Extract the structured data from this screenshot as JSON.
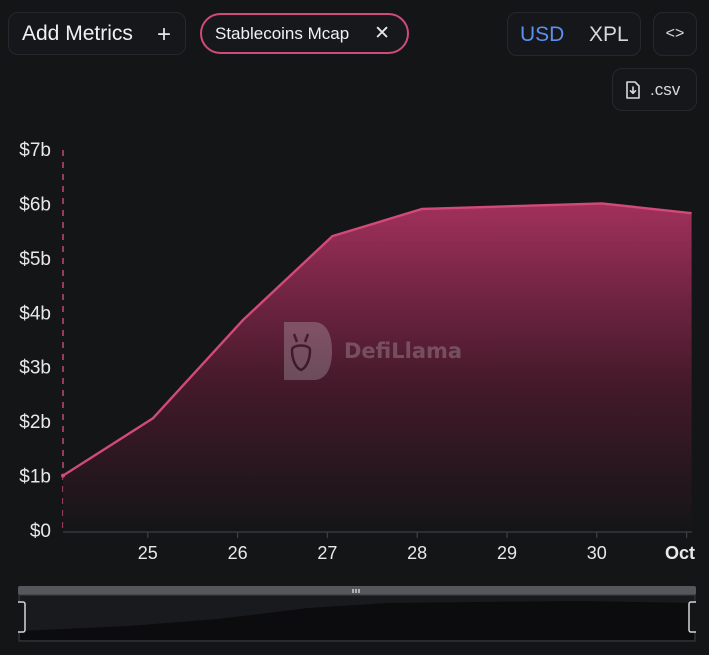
{
  "toolbar": {
    "add_metrics_label": "Add Metrics",
    "add_icon": "plus-icon",
    "metric_chip_label": "Stablecoins Mcap",
    "remove_icon": "close-icon",
    "currency_options": [
      "USD",
      "XPL"
    ],
    "selected_currency": "USD",
    "embed_icon": "code-icon",
    "csv_label": ".csv",
    "csv_icon": "file-download-icon"
  },
  "watermark": {
    "text": "DefiLlama",
    "icon": "llama-logo-icon"
  },
  "colors": {
    "background": "#141517",
    "series": "#d14a78",
    "accent_selected": "#5b8ff0",
    "axis_text": "#e8e8ea"
  },
  "chart_data": {
    "type": "area",
    "title": "",
    "xlabel": "",
    "ylabel": "",
    "x_tick_labels": [
      "25",
      "26",
      "27",
      "28",
      "29",
      "30",
      "Oct"
    ],
    "y_tick_labels": [
      "$0",
      "$1b",
      "$2b",
      "$3b",
      "$4b",
      "$5b",
      "$6b",
      "$7b"
    ],
    "ylim": [
      0,
      7
    ],
    "y_unit": "billion USD",
    "grid": false,
    "legend": "none",
    "series": [
      {
        "name": "Stablecoins Mcap",
        "points": [
          {
            "x": "2025-09-24",
            "y": 1.0
          },
          {
            "x": "2025-09-25",
            "y": 2.05
          },
          {
            "x": "2025-09-26",
            "y": 3.85
          },
          {
            "x": "2025-09-27",
            "y": 5.4
          },
          {
            "x": "2025-09-28",
            "y": 5.9
          },
          {
            "x": "2025-09-29",
            "y": 5.95
          },
          {
            "x": "2025-09-30",
            "y": 6.0
          },
          {
            "x": "2025-10-01",
            "y": 5.82
          }
        ]
      }
    ]
  }
}
